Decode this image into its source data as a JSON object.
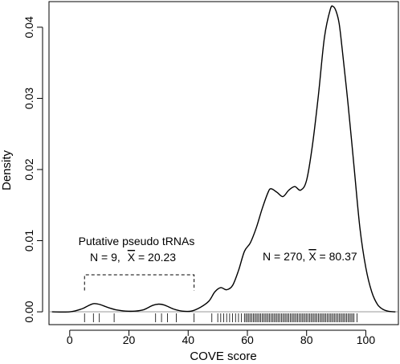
{
  "chart_data": {
    "type": "line",
    "title": "",
    "xlabel": "COVE score",
    "ylabel": "Density",
    "xlim": [
      -7,
      111
    ],
    "ylim": [
      -0.0018,
      0.0436
    ],
    "x_ticks": [
      0,
      20,
      40,
      60,
      80,
      100
    ],
    "x_tick_labels": [
      "0",
      "20",
      "40",
      "60",
      "80",
      "100"
    ],
    "y_ticks": [
      0.0,
      0.01,
      0.02,
      0.03,
      0.04
    ],
    "y_tick_labels": [
      "0.00",
      "0.01",
      "0.02",
      "0.03",
      "0.04"
    ],
    "grid": false,
    "baseline_y": 0,
    "baseline_color": "#9a9a9a",
    "series": [
      {
        "points": [
          [
            -6,
            0.0
          ],
          [
            0,
            0.0
          ],
          [
            4,
            0.0004
          ],
          [
            6,
            0.0008
          ],
          [
            8,
            0.00115
          ],
          [
            10,
            0.00105
          ],
          [
            13,
            0.0006
          ],
          [
            16,
            0.00025
          ],
          [
            19,
            0.0001
          ],
          [
            22,
            0.0001
          ],
          [
            25,
            0.0003
          ],
          [
            28,
            0.0009
          ],
          [
            30,
            0.00108
          ],
          [
            32,
            0.00095
          ],
          [
            35,
            0.0004
          ],
          [
            38,
            0.0001
          ],
          [
            41,
            0.0001
          ],
          [
            44,
            0.0006
          ],
          [
            47,
            0.0015
          ],
          [
            49,
            0.0028
          ],
          [
            51,
            0.0034
          ],
          [
            53,
            0.0031
          ],
          [
            55,
            0.0037
          ],
          [
            57,
            0.0058
          ],
          [
            59,
            0.0085
          ],
          [
            61,
            0.0097
          ],
          [
            63,
            0.0118
          ],
          [
            65,
            0.0145
          ],
          [
            67,
            0.0168
          ],
          [
            68,
            0.0173
          ],
          [
            70,
            0.0168
          ],
          [
            72,
            0.0162
          ],
          [
            74,
            0.0171
          ],
          [
            76,
            0.0176
          ],
          [
            78,
            0.0171
          ],
          [
            80,
            0.0185
          ],
          [
            82,
            0.0235
          ],
          [
            84,
            0.0305
          ],
          [
            86,
            0.0385
          ],
          [
            88,
            0.0425
          ],
          [
            89,
            0.0429
          ],
          [
            90,
            0.0422
          ],
          [
            91,
            0.0405
          ],
          [
            92,
            0.037
          ],
          [
            94,
            0.0292
          ],
          [
            96,
            0.0205
          ],
          [
            98,
            0.0118
          ],
          [
            100,
            0.0062
          ],
          [
            102,
            0.0028
          ],
          [
            104,
            0.001
          ],
          [
            106,
            0.0003
          ],
          [
            108,
            5e-05
          ],
          [
            110,
            0.0
          ]
        ]
      }
    ],
    "rug": [
      5,
      8,
      10,
      15,
      29,
      31,
      33,
      36,
      42,
      48,
      50,
      51,
      52,
      53,
      54,
      55,
      56,
      57,
      58,
      59,
      59.5,
      60,
      60.5,
      61,
      61.5,
      62,
      62.5,
      63,
      63.5,
      64,
      64.5,
      65,
      65.5,
      66,
      66.5,
      67,
      67.5,
      68,
      68.5,
      69,
      69.5,
      70,
      70.5,
      71,
      71.5,
      72,
      72.5,
      73,
      73.5,
      74,
      74.5,
      75,
      75.5,
      76,
      76.5,
      77,
      77.5,
      78,
      78.5,
      79,
      79.5,
      80,
      80.5,
      81,
      81.5,
      82,
      82.5,
      83,
      83.5,
      84,
      84.5,
      85,
      85.5,
      86,
      86.5,
      87,
      87.5,
      88,
      88.5,
      89,
      89.5,
      90,
      90.5,
      91,
      91.5,
      92,
      92.5,
      93,
      93.5,
      94,
      94.5,
      95,
      95.5,
      96,
      97
    ],
    "annotations": {
      "pseudo_title": "Putative pseudo tRNAs",
      "pseudo_stats_n": "N = 9,",
      "pseudo_stats_xbar": "X",
      "pseudo_stats_value": " = 20.23",
      "main_stats_n": "N = 270,",
      "main_stats_xbar": "X",
      "main_stats_value": " = 80.37"
    },
    "bracket": {
      "x_start": 5,
      "x_end": 42,
      "y": 0.0052,
      "drop_to": 0.003
    }
  }
}
